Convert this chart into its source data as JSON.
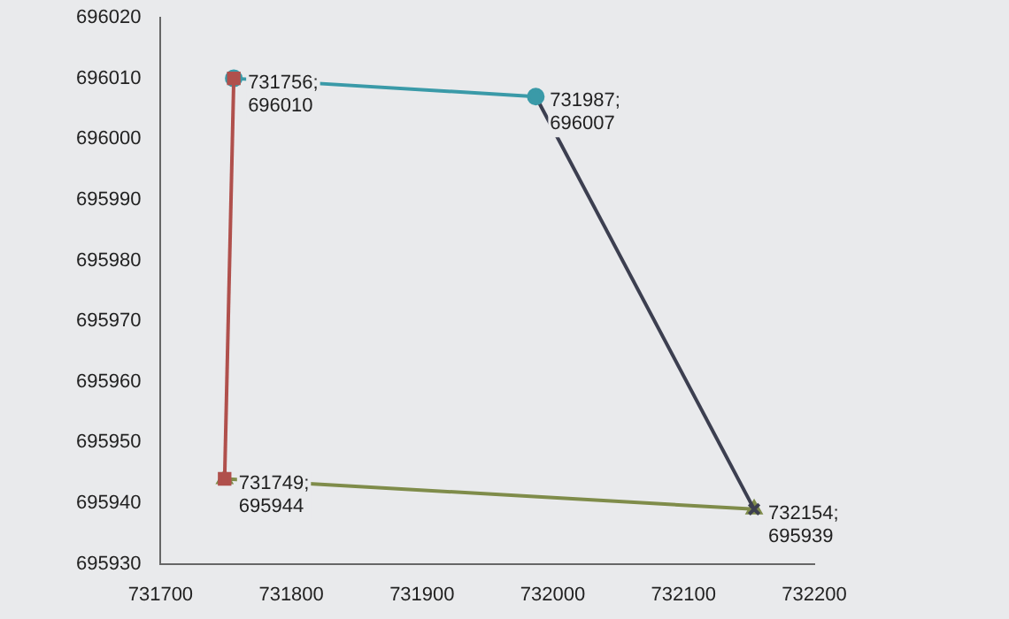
{
  "chart_data": {
    "type": "line",
    "series": [
      {
        "color": "#b0504c",
        "marker": "square",
        "x": [
          731749,
          731756
        ],
        "values": [
          695944,
          696010
        ]
      },
      {
        "color": "#3a9aa8",
        "marker": "circle",
        "x": [
          731756,
          731987
        ],
        "values": [
          696010,
          696007
        ]
      },
      {
        "color": "#3c3f50",
        "marker": "cross",
        "x": [
          731987,
          732154
        ],
        "values": [
          696007,
          695939
        ]
      },
      {
        "color": "#7f8c4a",
        "marker": "triangle",
        "x": [
          732154,
          731749
        ],
        "values": [
          695939,
          695944
        ]
      }
    ],
    "xlim": [
      731700,
      732200
    ],
    "xticks": [
      731700,
      731800,
      731900,
      732000,
      732100,
      732200
    ],
    "ylim": [
      695930,
      696020
    ],
    "yticks": [
      695930,
      695940,
      695950,
      695960,
      695970,
      695980,
      695990,
      696000,
      696010,
      696020
    ],
    "grid": false,
    "legend": false,
    "annotations": [
      {
        "text": "731756;\n696010",
        "x": 731756,
        "y": 696010
      },
      {
        "text": "731987;\n696007",
        "x": 731987,
        "y": 696007
      },
      {
        "text": "731749;\n695944",
        "x": 731749,
        "y": 695944
      },
      {
        "text": "732154;\n695939",
        "x": 732154,
        "y": 695939
      }
    ]
  }
}
